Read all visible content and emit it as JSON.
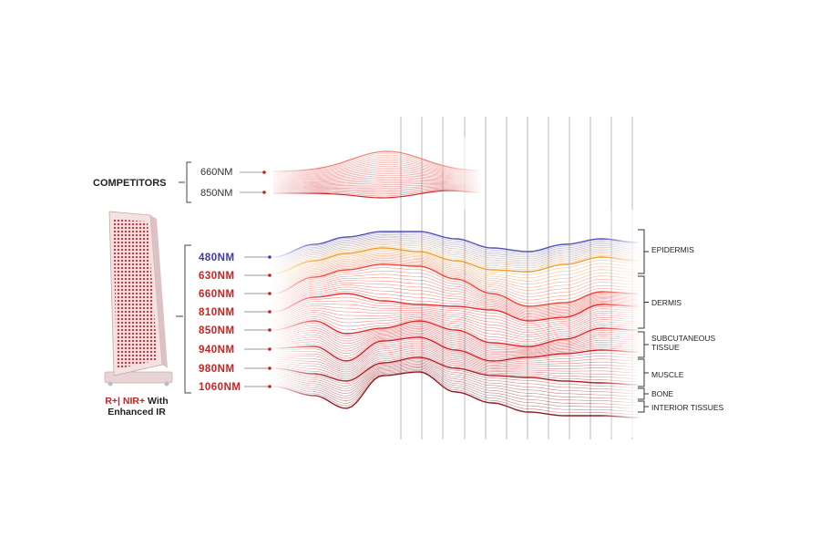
{
  "competitors": {
    "title": "COMPETITORS",
    "wavelengths": [
      {
        "label": "660NM"
      },
      {
        "label": "850NM"
      }
    ]
  },
  "device": {
    "caption_red": "R+| NIR+",
    "caption_rest": " With",
    "caption_line2": "Enhanced IR"
  },
  "wavelengths": [
    {
      "label": "480NM",
      "color": "#3b3aa8"
    },
    {
      "label": "630NM",
      "color": "#cc1f1f"
    },
    {
      "label": "660NM",
      "color": "#cc1f1f"
    },
    {
      "label": "810NM",
      "color": "#cc1f1f"
    },
    {
      "label": "850NM",
      "color": "#cc1f1f"
    },
    {
      "label": "940NM",
      "color": "#cc1f1f"
    },
    {
      "label": "980NM",
      "color": "#cc1f1f"
    },
    {
      "label": "1060NM",
      "color": "#cc1f1f"
    }
  ],
  "layers": [
    {
      "label": "EPIDERMIS"
    },
    {
      "label": "DERMIS"
    },
    {
      "label": "SUBCUTANEOUS",
      "label2": "TISSUE"
    },
    {
      "label": "MUSCLE"
    },
    {
      "label": "BONE"
    },
    {
      "label": "INTERIOR TISSUES"
    }
  ],
  "colors": {
    "blue": "#3b3aa8",
    "orange": "#f08a1a",
    "red": "#e8231c",
    "dark_red": "#8a0f14",
    "label_dark": "#222222"
  }
}
